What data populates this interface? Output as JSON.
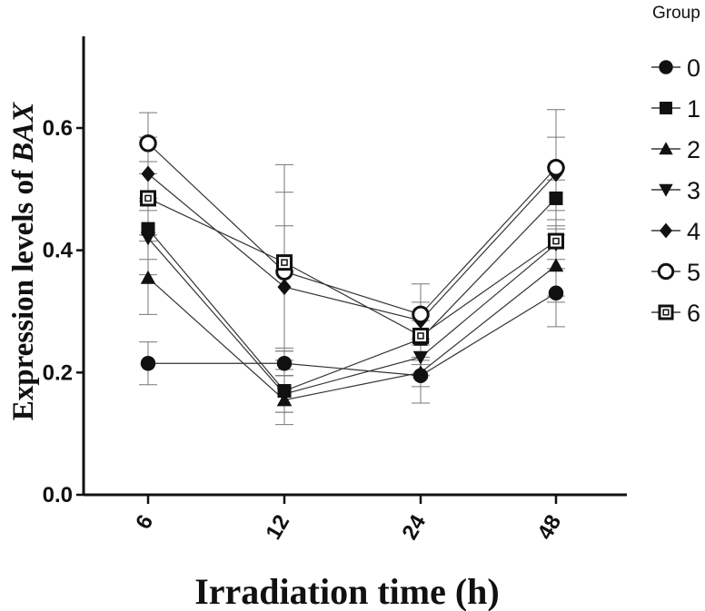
{
  "chart_data": {
    "type": "line",
    "x": [
      "6",
      "12",
      "24",
      "48"
    ],
    "xlabel": "Irradiation time (h)",
    "ylabel_prefix": "Expression levels of ",
    "ylabel_gene": "BAX",
    "ylim": [
      0,
      0.75
    ],
    "yticks": [
      "0.0",
      "0.2",
      "0.4",
      "0.6"
    ],
    "ytick_values": [
      0,
      0.2,
      0.4,
      0.6
    ],
    "legend_title": "Group",
    "legend_position": "right",
    "series": [
      {
        "name": "0",
        "marker": "circle-filled",
        "values": [
          0.215,
          0.215,
          0.195,
          0.33
        ],
        "err": [
          0.035,
          0.02,
          0.018,
          0.055
        ]
      },
      {
        "name": "1",
        "marker": "square-filled",
        "values": [
          0.435,
          0.17,
          0.255,
          0.485
        ],
        "err": [
          0.05,
          0.035,
          0.03,
          0.05
        ]
      },
      {
        "name": "2",
        "marker": "triangle-up-filled",
        "values": [
          0.355,
          0.155,
          0.2,
          0.375
        ],
        "err": [
          0.06,
          0.04,
          0.05,
          0.05
        ]
      },
      {
        "name": "3",
        "marker": "triangle-down-filled",
        "values": [
          0.42,
          0.165,
          0.225,
          0.41
        ],
        "err": [
          0.06,
          0.03,
          0.03,
          0.04
        ]
      },
      {
        "name": "4",
        "marker": "diamond-filled",
        "values": [
          0.525,
          0.34,
          0.285,
          0.525
        ],
        "err": [
          0.06,
          0.1,
          0.03,
          0.06
        ]
      },
      {
        "name": "5",
        "marker": "circle-open",
        "values": [
          0.575,
          0.365,
          0.295,
          0.535
        ],
        "err": [
          0.05,
          0.13,
          0.05,
          0.095
        ]
      },
      {
        "name": "6",
        "marker": "square-open",
        "values": [
          0.485,
          0.38,
          0.26,
          0.415
        ],
        "err": [
          0.06,
          0.16,
          0.04,
          0.1
        ]
      }
    ]
  }
}
